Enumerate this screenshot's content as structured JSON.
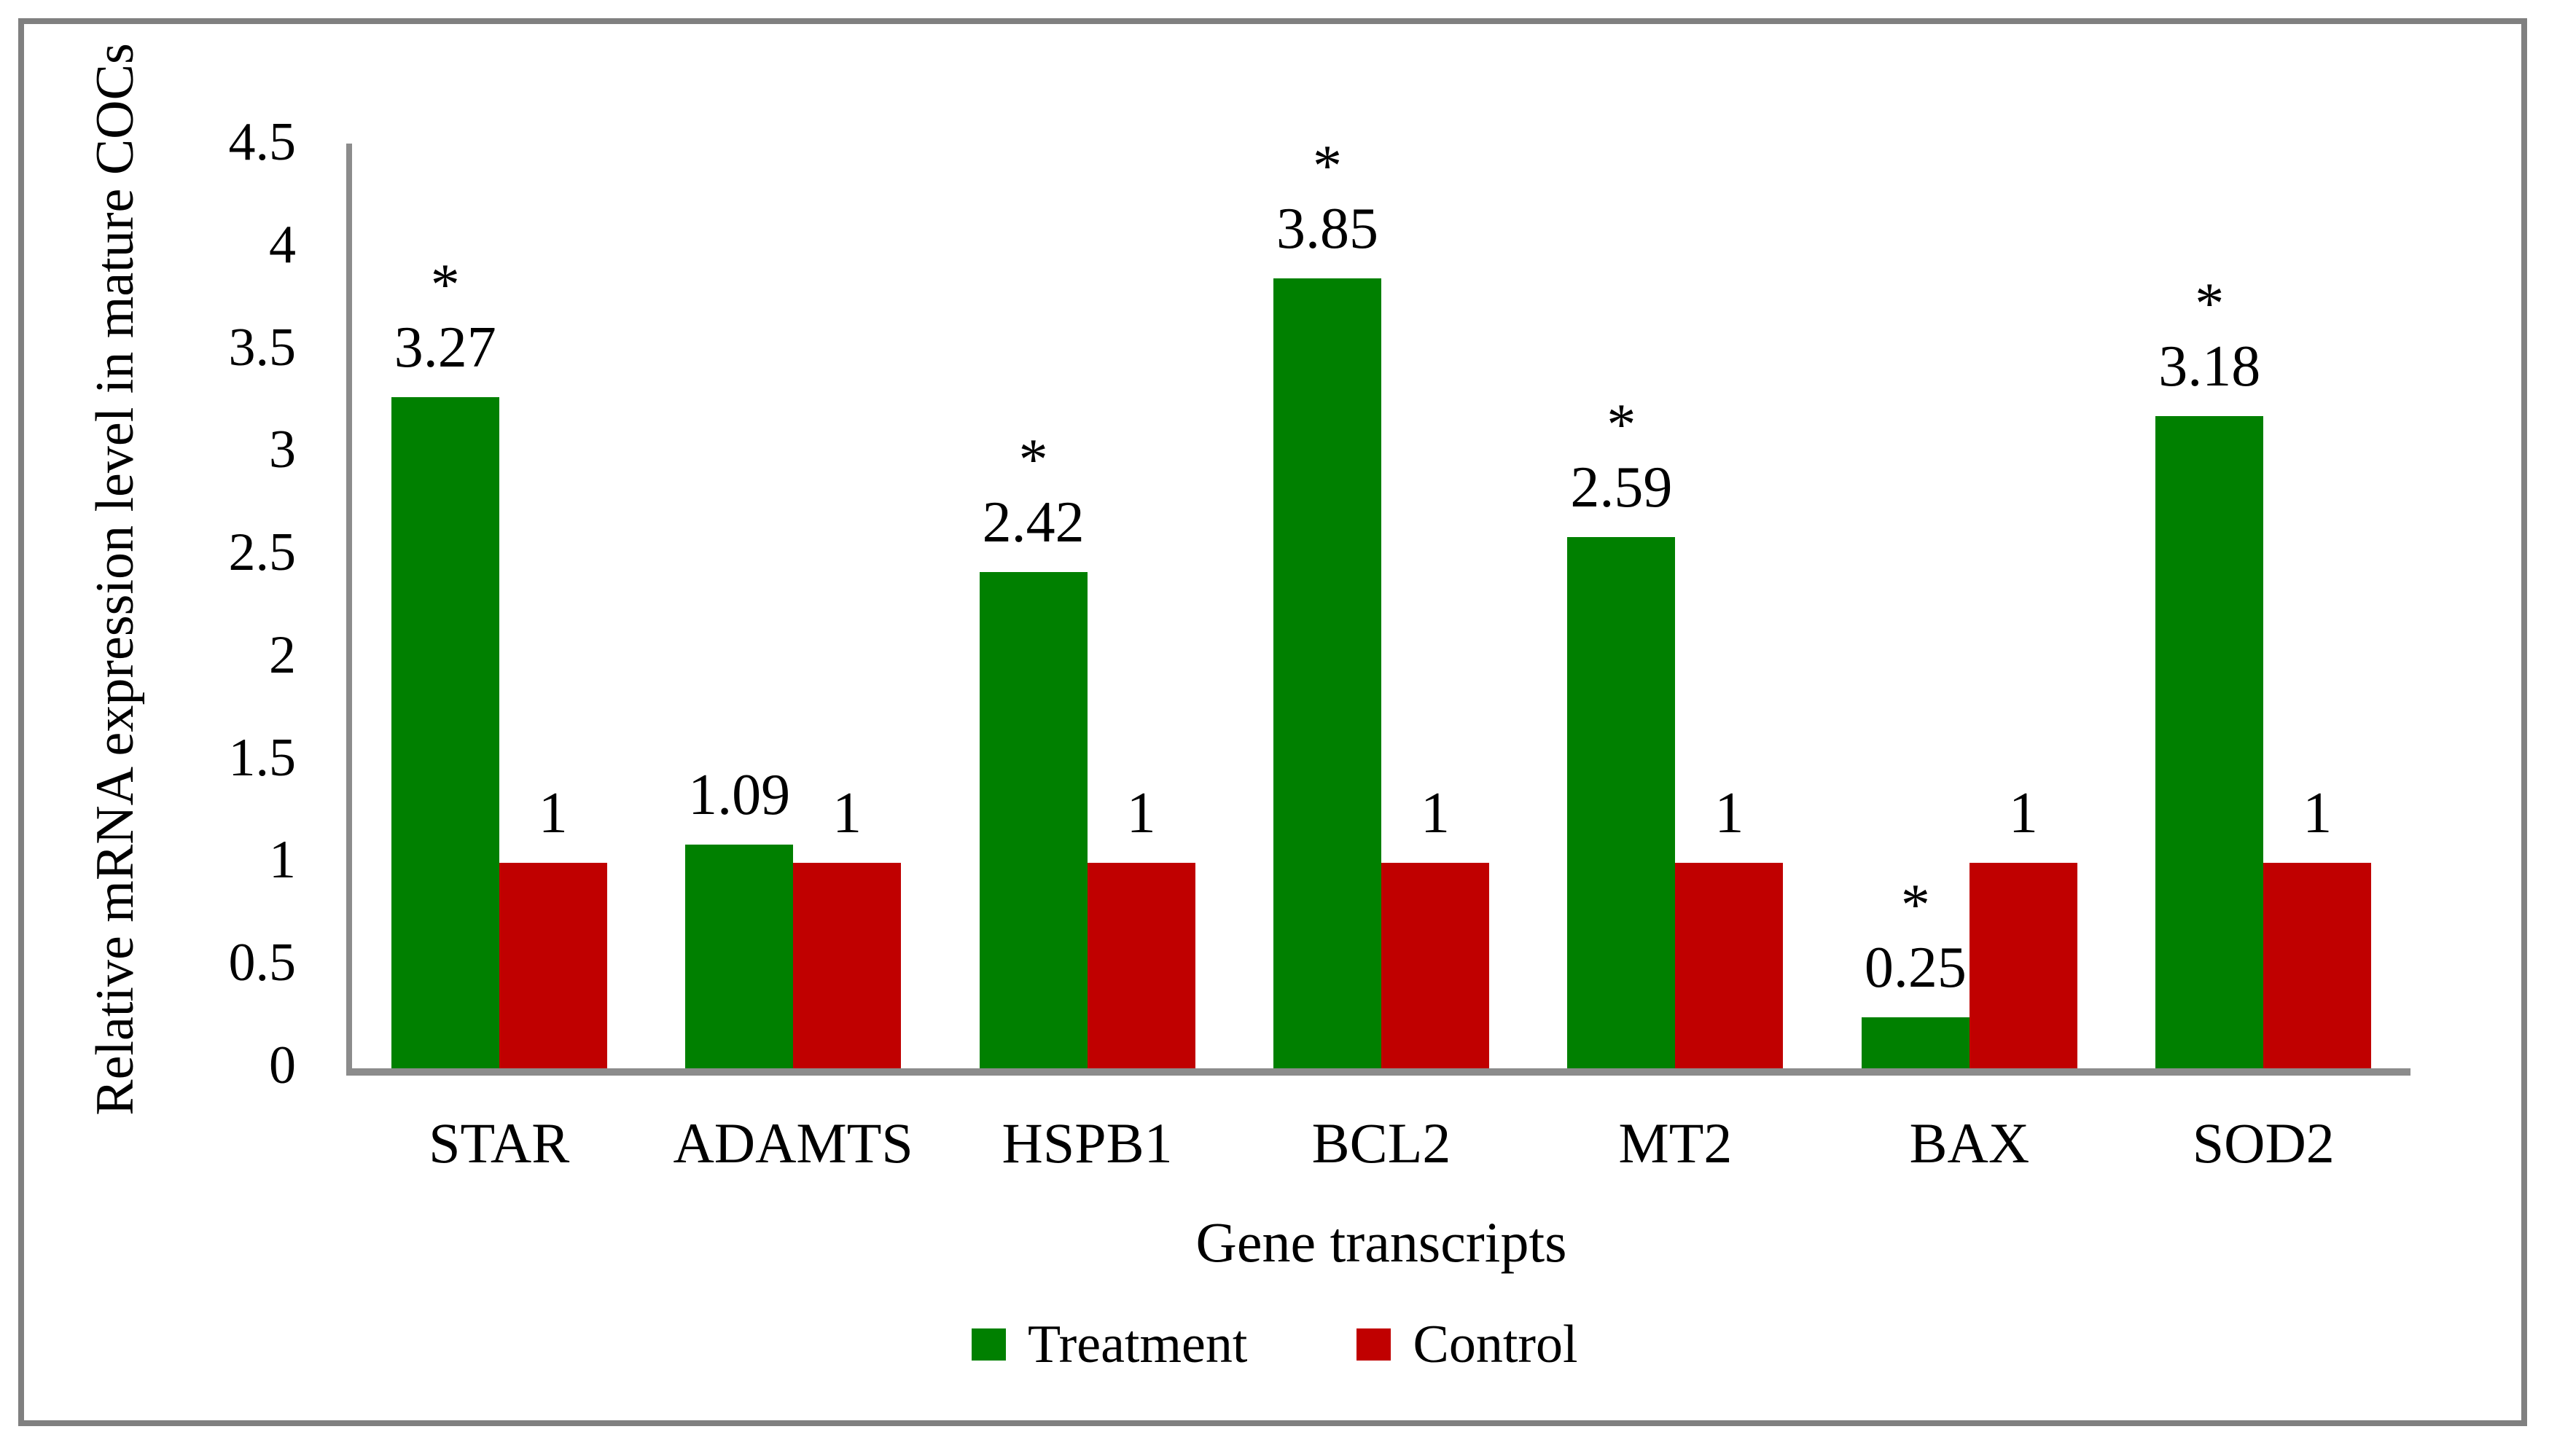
{
  "figure": {
    "background": "#ffffff",
    "frame_border_color": "#808080",
    "axis_color": "#8c8c8c"
  },
  "y_axis": {
    "title": "Relative mRNA expression level in mature COCs"
  },
  "x_axis": {
    "title": "Gene transcripts"
  },
  "legend": {
    "items": [
      {
        "label": "Treatment",
        "color": "#008000"
      },
      {
        "label": "Control",
        "color": "#c00000"
      }
    ]
  },
  "chart_data": {
    "type": "bar",
    "title": "",
    "categories": [
      "STAR",
      "ADAMTS",
      "HSPB1",
      "BCL2",
      "MT2",
      "BAX",
      "SOD2"
    ],
    "series": [
      {
        "name": "Treatment",
        "color": "#008000",
        "values": [
          3.27,
          1.09,
          2.42,
          3.85,
          2.59,
          0.25,
          3.18
        ],
        "data_labels": [
          "3.27",
          "1.09",
          "2.42",
          "3.85",
          "2.59",
          "0.25",
          "3.18"
        ],
        "significance": [
          "*",
          "",
          "*",
          "*",
          "*",
          "*",
          "*"
        ]
      },
      {
        "name": "Control",
        "color": "#c00000",
        "values": [
          1,
          1,
          1,
          1,
          1,
          1,
          1
        ],
        "data_labels": [
          "1",
          "1",
          "1",
          "1",
          "1",
          "1",
          "1"
        ],
        "significance": [
          "",
          "",
          "",
          "",
          "",
          "",
          ""
        ]
      }
    ],
    "xlabel": "Gene transcripts",
    "ylabel": "Relative mRNA expression level in mature COCs",
    "ylim": [
      0,
      4.5
    ],
    "yticks": [
      0,
      0.5,
      1,
      1.5,
      2,
      2.5,
      3,
      3.5,
      4,
      4.5
    ],
    "ytick_labels": [
      "0",
      "0.5",
      "1",
      "1.5",
      "2",
      "2.5",
      "3",
      "3.5",
      "4",
      "4.5"
    ],
    "grid": false,
    "legend_position": "bottom"
  }
}
